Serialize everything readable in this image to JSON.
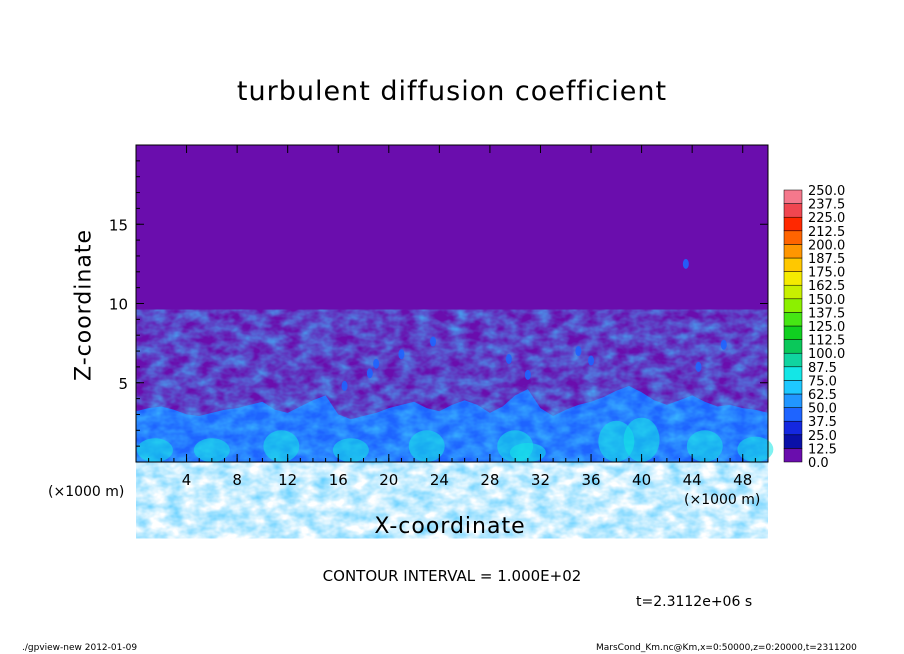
{
  "chart_data": {
    "type": "heatmap",
    "title": "turbulent diffusion coefficient",
    "xlabel": "X-coordinate",
    "ylabel": "Z-coordinate",
    "x_unit": "(×1000 m)",
    "xlim": [
      0,
      50
    ],
    "ylim": [
      0,
      20
    ],
    "x_ticks": [
      4,
      8,
      12,
      16,
      20,
      24,
      28,
      32,
      36,
      40,
      44,
      48
    ],
    "y_ticks": [
      5,
      10,
      15
    ],
    "colorbar": {
      "levels": [
        "0.0",
        "12.5",
        "25.0",
        "37.5",
        "50.0",
        "62.5",
        "75.0",
        "87.5",
        "100.0",
        "112.5",
        "125.0",
        "137.5",
        "150.0",
        "162.5",
        "175.0",
        "187.5",
        "200.0",
        "212.5",
        "225.0",
        "237.5",
        "250.0"
      ],
      "colors": [
        "#6a0dad",
        "#0a10a8",
        "#1428e0",
        "#1e64ff",
        "#2196ff",
        "#1ec8ff",
        "#14e6e6",
        "#10d4a0",
        "#0ac85a",
        "#10d020",
        "#46e614",
        "#8cf000",
        "#c8f000",
        "#f5eb00",
        "#ffc800",
        "#ff9600",
        "#ff6400",
        "#ff2800",
        "#f04650",
        "#f5788c"
      ]
    },
    "background_value": "0.0",
    "annotation": "CONTOUR INTERVAL = 1.000E+02",
    "time_label": "t=2.3112e+06 s"
  },
  "footer": {
    "left": "./gpview-new   2012-01-09",
    "right": "MarsCond_Km.nc@Km,x=0:50000,z=0:20000,t=2311200"
  }
}
